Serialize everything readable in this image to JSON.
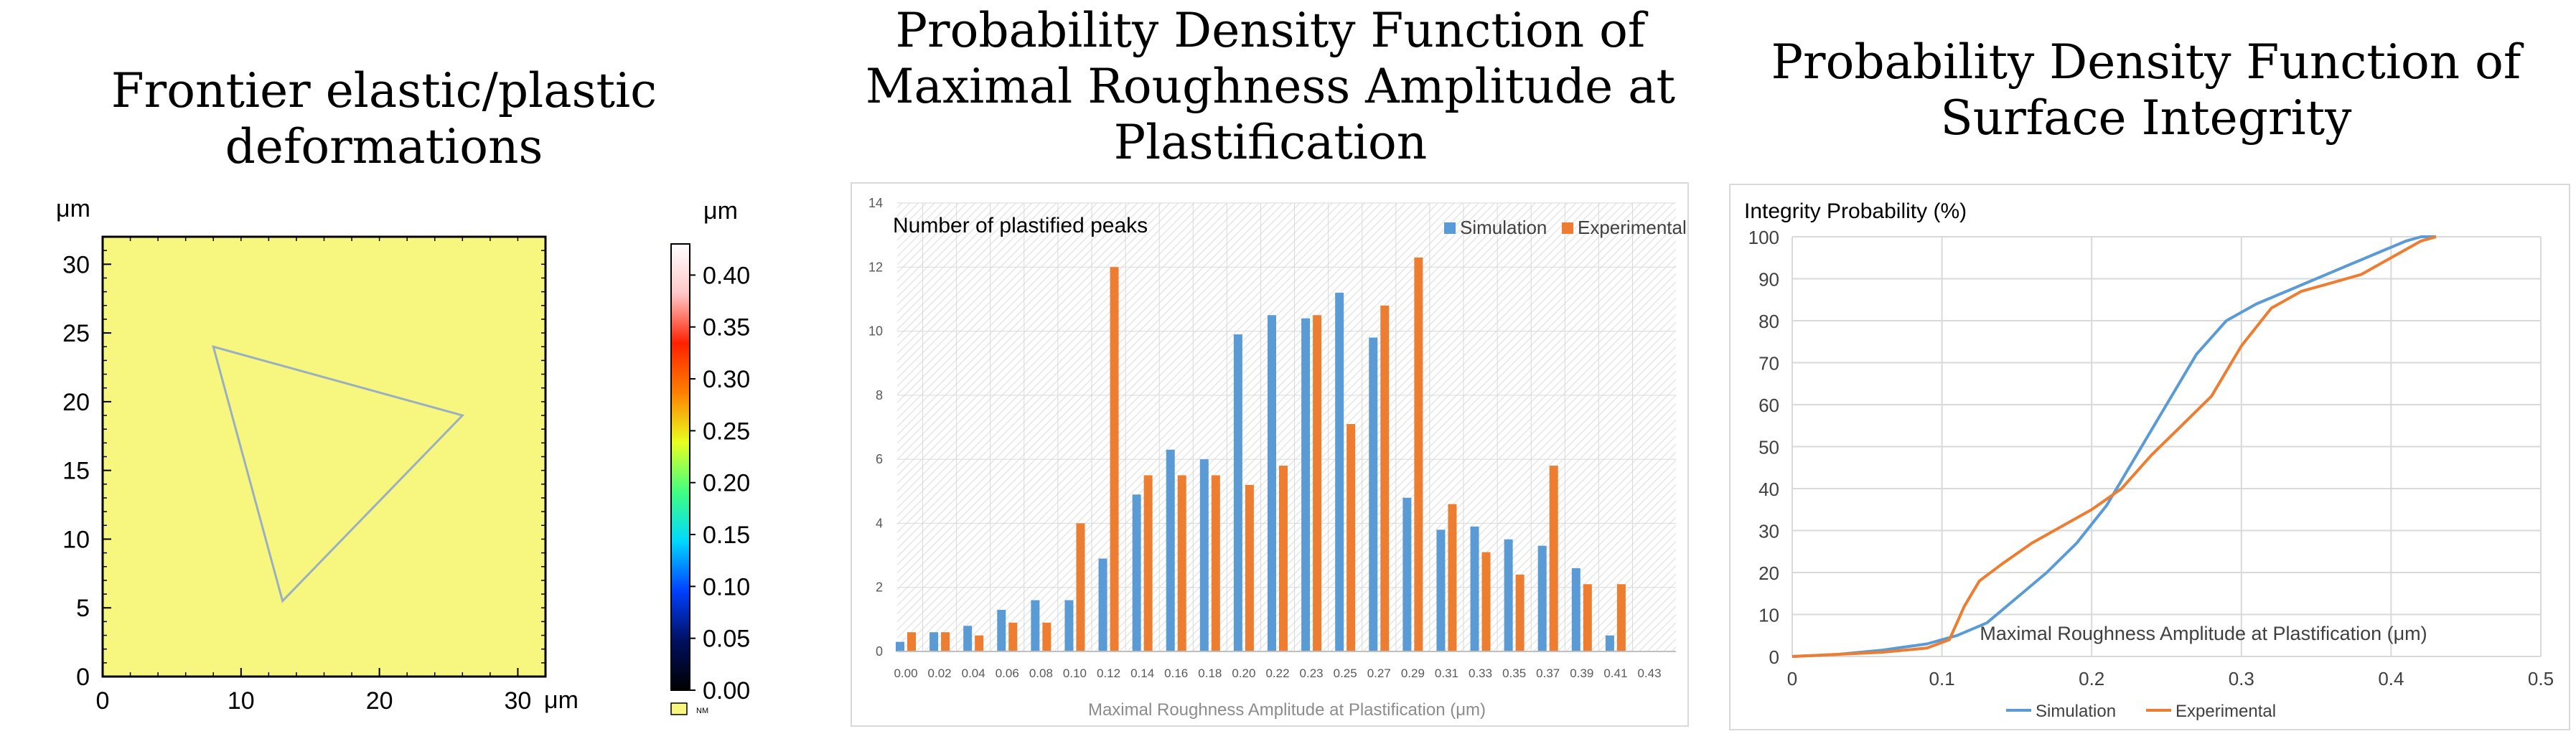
{
  "panels": {
    "left": {
      "title": "Frontier elastic/plastic deformations"
    },
    "middle": {
      "title_lines": [
        "Probability Density Function of",
        "Maximal Roughness Amplitude at",
        "Plastification"
      ]
    },
    "right": {
      "title_lines": [
        "Probability Density Function of",
        "Surface Integrity"
      ]
    }
  },
  "chart_data": [
    {
      "type": "heatmap",
      "title": "Frontier elastic/plastic deformations",
      "x_unit": "μm",
      "y_unit": "μm",
      "x_ticks": [
        "0",
        "10",
        "20",
        "30"
      ],
      "y_ticks": [
        "0",
        "5",
        "10",
        "15",
        "20",
        "25",
        "30"
      ],
      "xlim": [
        0,
        32
      ],
      "ylim": [
        0,
        32
      ],
      "background_value": 0.2,
      "triangle_outline": [
        [
          8,
          24
        ],
        [
          26,
          19
        ],
        [
          13,
          5.5
        ]
      ],
      "colorbar": {
        "unit": "μm",
        "ticks": [
          "0.40",
          "0.35",
          "0.30",
          "0.25",
          "0.20",
          "0.15",
          "0.10",
          "0.05",
          "0.00"
        ],
        "range": [
          0,
          0.43
        ],
        "nm_label": "NM",
        "stops": [
          "#000000",
          "#001060",
          "#0040ff",
          "#00d8ff",
          "#40ff80",
          "#e8ff20",
          "#ff8000",
          "#ff2000",
          "#ffc8c8",
          "#ffffff"
        ]
      },
      "colors": {
        "surface": "#f7f780",
        "outline": "#9ab0c0",
        "frame": "#000000"
      }
    },
    {
      "type": "bar",
      "title": "Number of plastified peaks",
      "xlabel": "Maximal Roughness Amplitude at Plastification (μm)",
      "ylabel": "",
      "ylim": [
        0,
        14
      ],
      "y_ticks": [
        "0",
        "2",
        "4",
        "6",
        "8",
        "10",
        "12",
        "14"
      ],
      "categories": [
        "0.00",
        "0.02",
        "0.04",
        "0.06",
        "0.08",
        "0.10",
        "0.12",
        "0.14",
        "0.16",
        "0.18",
        "0.20",
        "0.22",
        "0.23",
        "0.25",
        "0.27",
        "0.29",
        "0.31",
        "0.33",
        "0.35",
        "0.37",
        "0.39",
        "0.41",
        "0.43"
      ],
      "series": [
        {
          "name": "Simulation",
          "color": "#5b9bd5",
          "values": [
            0.3,
            0.6,
            0.8,
            1.3,
            1.6,
            1.6,
            2.9,
            4.9,
            6.3,
            6.0,
            9.9,
            10.5,
            10.4,
            11.2,
            9.8,
            4.8,
            3.8,
            3.9,
            3.5,
            3.3,
            2.6,
            0.5,
            0
          ]
        },
        {
          "name": "Experimental",
          "color": "#ed7d31",
          "values": [
            0.6,
            0.6,
            0.5,
            0.9,
            0.9,
            4.0,
            12.0,
            5.5,
            5.5,
            5.5,
            5.2,
            5.8,
            10.5,
            7.1,
            10.8,
            12.3,
            4.6,
            3.1,
            2.4,
            5.8,
            2.1,
            2.1,
            0
          ]
        }
      ],
      "legend": "top-right",
      "colors": {
        "grid": "#d9d9d9",
        "hatch": "#e4e4e4",
        "axis_text": "#595959"
      }
    },
    {
      "type": "line",
      "title": "Integrity Probability (%)",
      "xlabel": "Maximal Roughness Amplitude at Plastification (μm)",
      "xlim": [
        0,
        0.5
      ],
      "ylim": [
        0,
        100
      ],
      "x_ticks": [
        "0",
        "0.1",
        "0.2",
        "0.3",
        "0.4",
        "0.5"
      ],
      "y_ticks": [
        "0",
        "10",
        "20",
        "30",
        "40",
        "50",
        "60",
        "70",
        "80",
        "90",
        "100"
      ],
      "series": [
        {
          "name": "Simulation",
          "color": "#5b9bd5",
          "x": [
            0,
            0.03,
            0.06,
            0.09,
            0.11,
            0.13,
            0.15,
            0.17,
            0.19,
            0.21,
            0.23,
            0.25,
            0.27,
            0.29,
            0.31,
            0.33,
            0.35,
            0.37,
            0.39,
            0.41,
            0.42,
            0.43
          ],
          "y": [
            0,
            0.5,
            1.5,
            3,
            5,
            8,
            14,
            20,
            27,
            36,
            48,
            60,
            72,
            80,
            84,
            87,
            90,
            93,
            96,
            99,
            100,
            100
          ]
        },
        {
          "name": "Experimental",
          "color": "#ed7d31",
          "x": [
            0,
            0.03,
            0.06,
            0.09,
            0.105,
            0.115,
            0.125,
            0.14,
            0.16,
            0.18,
            0.2,
            0.22,
            0.24,
            0.26,
            0.28,
            0.3,
            0.32,
            0.34,
            0.36,
            0.38,
            0.4,
            0.42,
            0.43
          ],
          "y": [
            0,
            0.5,
            1,
            2,
            4,
            12,
            18,
            22,
            27,
            31,
            35,
            40,
            48,
            55,
            62,
            74,
            83,
            87,
            89,
            91,
            95,
            99,
            100
          ]
        }
      ],
      "legend": "bottom",
      "colors": {
        "grid": "#d9d9d9",
        "axis_text": "#404040"
      }
    }
  ]
}
